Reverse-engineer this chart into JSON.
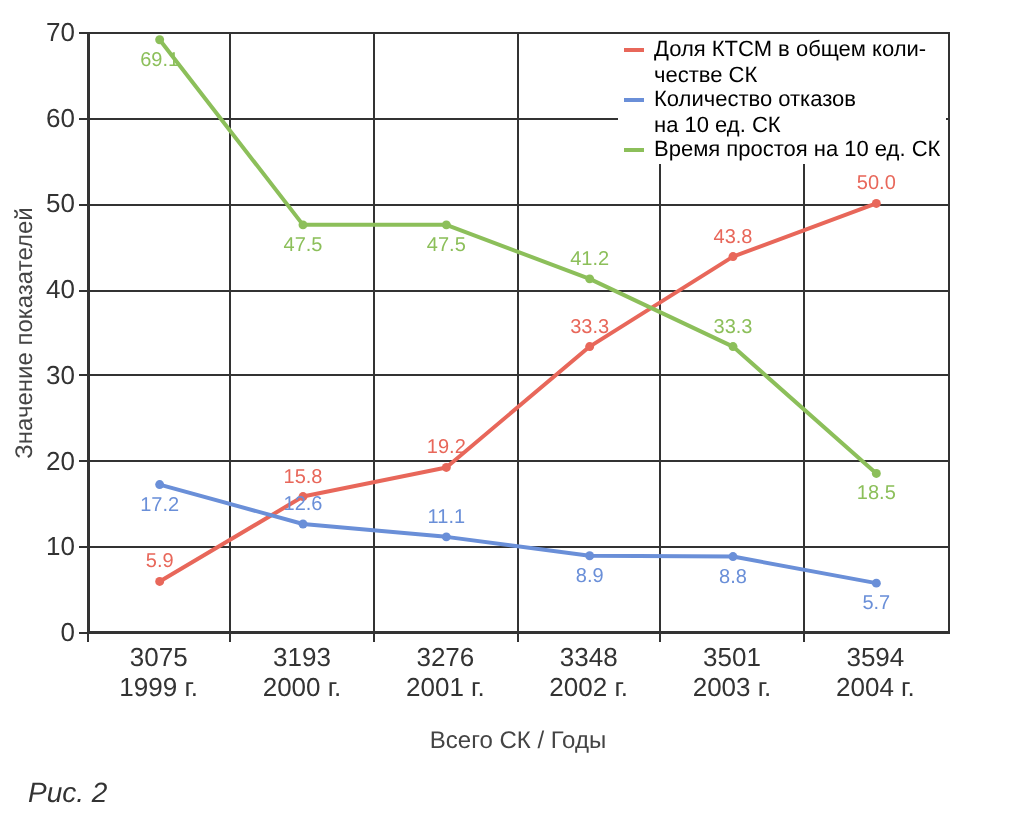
{
  "chart_data": {
    "type": "line",
    "xlabel": "Всего СК / Годы",
    "ylabel": "Значение показателей",
    "categories": [
      "3075\n1999 г.",
      "3193\n2000 г.",
      "3276\n2001 г.",
      "3348\n2002 г.",
      "3501\n2003 г.",
      "3594\n2004 г."
    ],
    "series": [
      {
        "name": "Доля КТСМ в общем коли-\nчестве СК",
        "color": "#e8675a",
        "values": [
          5.9,
          15.8,
          19.2,
          33.3,
          43.8,
          50.0
        ]
      },
      {
        "name": "Количество отказов\nна 10 ед. СК",
        "color": "#6a8fd8",
        "values": [
          17.2,
          12.6,
          11.1,
          8.9,
          8.8,
          5.7
        ]
      },
      {
        "name": "Время простоя на 10 ед. СК",
        "color": "#8cbf5a",
        "values": [
          69.1,
          47.5,
          47.5,
          41.2,
          33.3,
          18.5
        ]
      }
    ],
    "ylim": [
      0,
      70
    ],
    "yticks": [
      0,
      10,
      20,
      30,
      40,
      50,
      60,
      70
    ],
    "grid": true,
    "legend": "top right",
    "marker": "circle",
    "line_style": "solid",
    "value_labels": [
      [
        "5.9",
        "15.8",
        "19.2",
        "33.3",
        "43.8",
        "50.0"
      ],
      [
        "17.2",
        "12.6",
        "11.1",
        "8.9",
        "8.8",
        "5.7"
      ],
      [
        "69.1",
        "47.5",
        "47.5",
        "41.2",
        "33.3",
        "18.5"
      ]
    ],
    "annotations": [
      "Рис. 2"
    ]
  }
}
